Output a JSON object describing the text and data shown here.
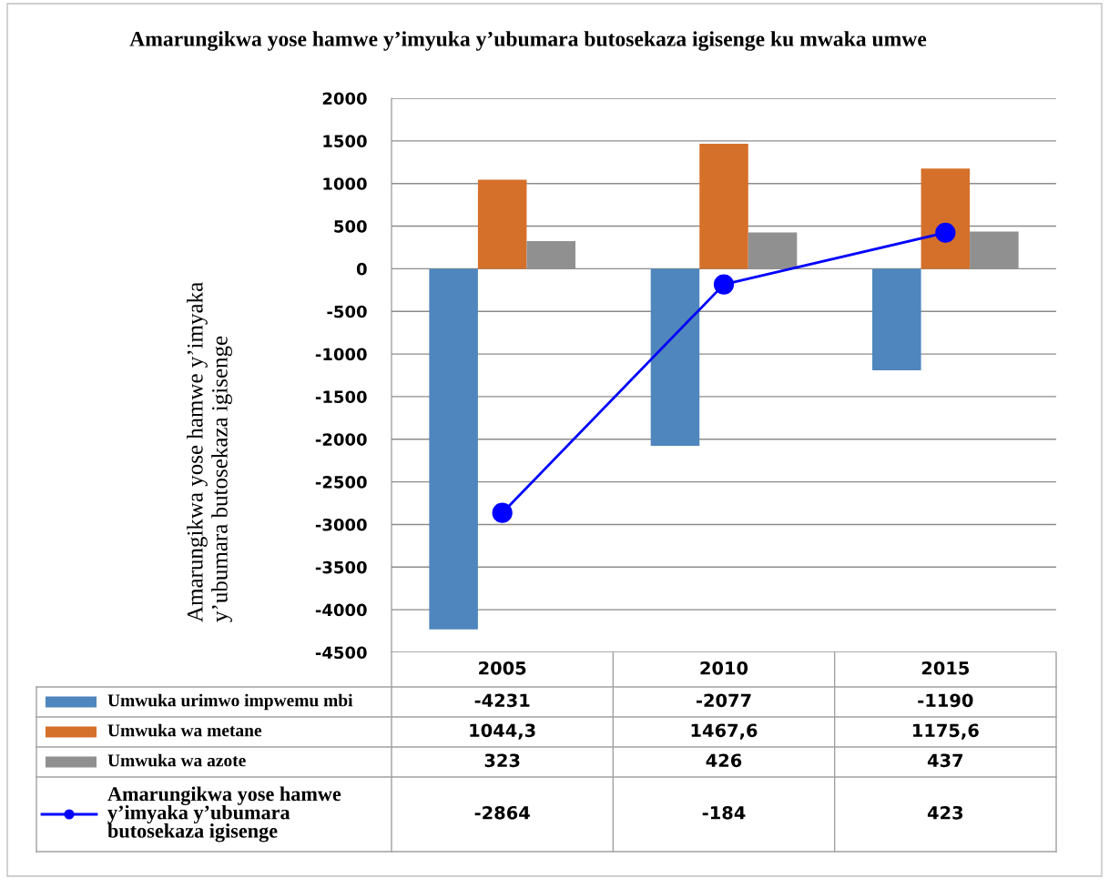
{
  "chart_data": {
    "type": "bar",
    "title": "Amarungikwa yose hamwe y’imyuka y’ubumara butosekaza igisenge ku mwaka umwe",
    "ylabel": "Amarungikwa yose hamwe y’imyaka y’ubumara butosekaza igisenge",
    "categories": [
      "2005",
      "2010",
      "2015"
    ],
    "series": [
      {
        "name": "Umwuka urimwo impwemu mbi",
        "color": "#4f86bd",
        "values": [
          -4231,
          -2077,
          -1190
        ],
        "value_labels": [
          "-4231",
          "-2077",
          "-1190"
        ]
      },
      {
        "name": "Umwuka wa metane",
        "color": "#d5702b",
        "values": [
          1044.3,
          1467.6,
          1175.6
        ],
        "value_labels": [
          "1044,3",
          "1467,6",
          "1175,6"
        ]
      },
      {
        "name": "Umwuka wa azote",
        "color": "#909090",
        "values": [
          323,
          426,
          437
        ],
        "value_labels": [
          "323",
          "426",
          "437"
        ]
      },
      {
        "name": "Amarungikwa yose hamwe y’imyaka y’ubumara butosekaza igisenge",
        "type": "line",
        "color": "#0000ff",
        "values": [
          -2864,
          -184,
          423
        ],
        "value_labels": [
          "-2864",
          "-184",
          "423"
        ]
      }
    ],
    "ylim": [
      -4500,
      2000
    ],
    "yticks": [
      -4500,
      -4000,
      -3500,
      -3000,
      -2500,
      -2000,
      -1500,
      -1000,
      -500,
      0,
      500,
      1000,
      1500,
      2000
    ],
    "grid": "y",
    "legend": "bottom",
    "marker": "circle"
  }
}
